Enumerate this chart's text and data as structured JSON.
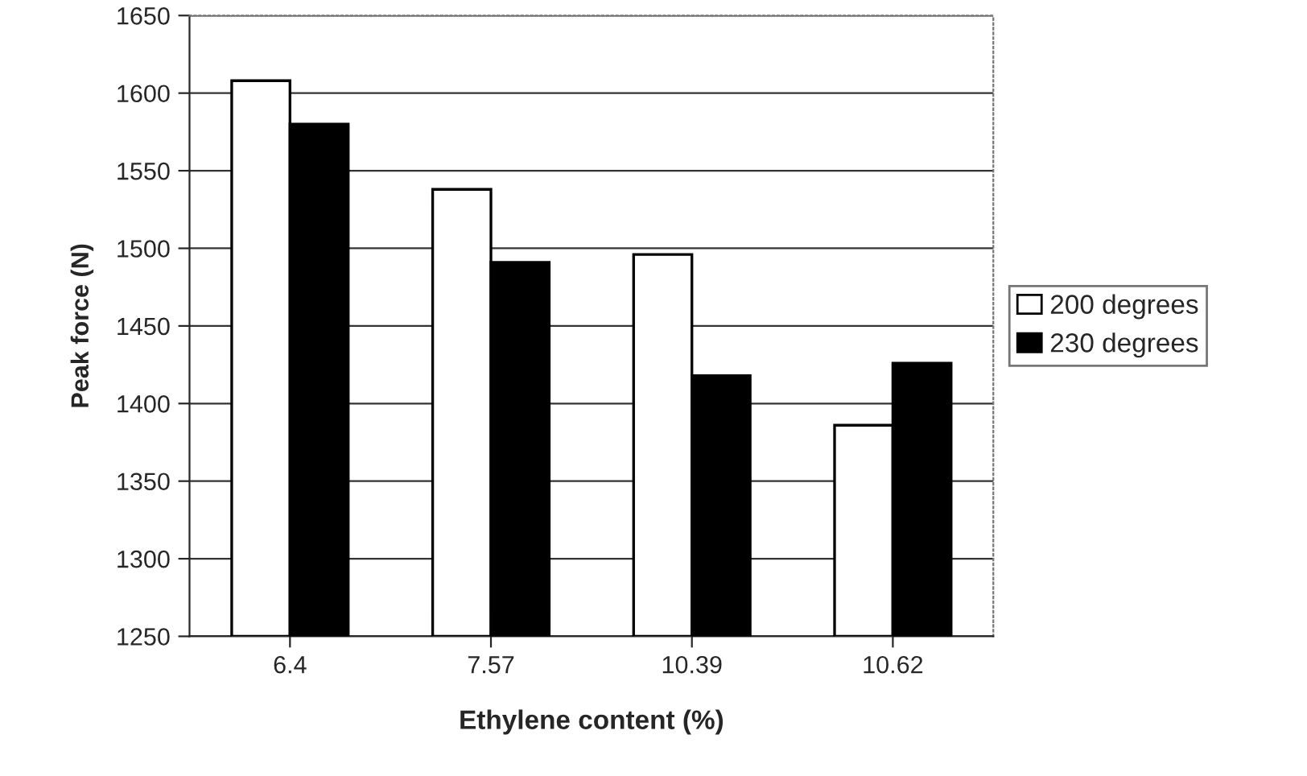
{
  "chart_data": {
    "type": "bar",
    "xlabel": "Ethylene content (%)",
    "ylabel": "Peak force (N)",
    "categories": [
      "6.4",
      "7.57",
      "10.39",
      "10.62"
    ],
    "series": [
      {
        "name": "200 degrees",
        "color": "#ffffff",
        "values": [
          1608,
          1538,
          1496,
          1386
        ]
      },
      {
        "name": "230 degrees",
        "color": "#000000",
        "values": [
          1580,
          1491,
          1418,
          1426
        ]
      }
    ],
    "ylim": [
      1250,
      1650
    ],
    "yticks": [
      1250,
      1300,
      1350,
      1400,
      1450,
      1500,
      1550,
      1600,
      1650
    ],
    "grid": "y",
    "legend": "right"
  }
}
